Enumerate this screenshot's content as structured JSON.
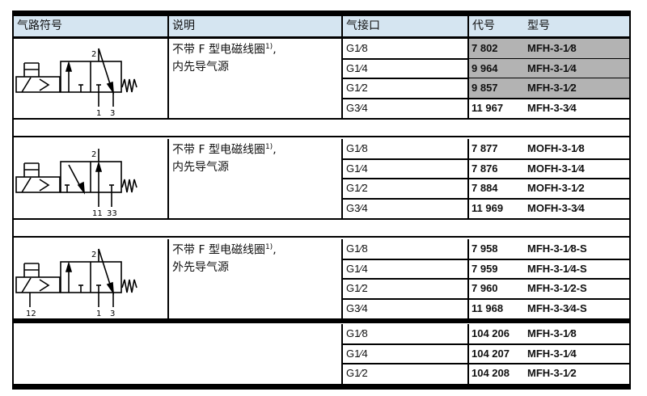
{
  "header": {
    "symbol": "气路符号",
    "description": "说明",
    "port": "气接口",
    "code": "代号",
    "model": "型号"
  },
  "groups": [
    {
      "description_line1": "不带 F 型电磁线圈",
      "footnote": "1)",
      "description_suffix": ",",
      "description_line2": "内先导气源",
      "ports_labels": [
        "2",
        "1",
        "3"
      ],
      "rows": [
        {
          "port": "G1⁄8",
          "code": "7 802",
          "model": "MFH-3-1⁄8",
          "highlighted": true
        },
        {
          "port": "G1⁄4",
          "code": "9 964",
          "model": "MFH-3-1⁄4",
          "highlighted": true
        },
        {
          "port": "G1⁄2",
          "code": "9 857",
          "model": "MFH-3-1⁄2",
          "highlighted": true
        },
        {
          "port": "G3⁄4",
          "code": "11 967",
          "model": "MFH-3-3⁄4",
          "highlighted": false
        }
      ]
    },
    {
      "description_line1": "不带 F 型电磁线圈",
      "footnote": "1)",
      "description_suffix": ",",
      "description_line2": "内先导气源",
      "ports_labels": [
        "2",
        "11",
        "33"
      ],
      "rows": [
        {
          "port": "G1⁄8",
          "code": "7 877",
          "model": "MOFH-3-1⁄8"
        },
        {
          "port": "G1⁄4",
          "code": "7 876",
          "model": "MOFH-3-1⁄4"
        },
        {
          "port": "G1⁄2",
          "code": "7 884",
          "model": "MOFH-3-1⁄2"
        },
        {
          "port": "G3⁄4",
          "code": "11 969",
          "model": "MOFH-3-3⁄4"
        }
      ]
    },
    {
      "description_line1": "不带 F 型电磁线圈",
      "footnote": "1)",
      "description_suffix": ",",
      "description_line2": "外先导气源",
      "ports_labels": [
        "2",
        "12",
        "1",
        "3"
      ],
      "rows": [
        {
          "port": "G1⁄8",
          "code": "7 958",
          "model": "MFH-3-1⁄8-S"
        },
        {
          "port": "G1⁄4",
          "code": "7 959",
          "model": "MFH-3-1⁄4-S"
        },
        {
          "port": "G1⁄2",
          "code": "7 960",
          "model": "MFH-3-1⁄2-S"
        },
        {
          "port": "G3⁄4",
          "code": "11 968",
          "model": "MFH-3-3⁄4-S"
        }
      ]
    },
    {
      "rows": [
        {
          "port": "G1⁄8",
          "code": "104 206",
          "model": "MFH-3-1⁄8"
        },
        {
          "port": "G1⁄4",
          "code": "104 207",
          "model": "MFH-3-1⁄4"
        },
        {
          "port": "G1⁄2",
          "code": "104 208",
          "model": "MFH-3-1⁄2"
        }
      ]
    }
  ],
  "colors": {
    "header_bg": "#d5e5f1",
    "highlight_bg": "#b3b3b3",
    "border": "#000000"
  }
}
